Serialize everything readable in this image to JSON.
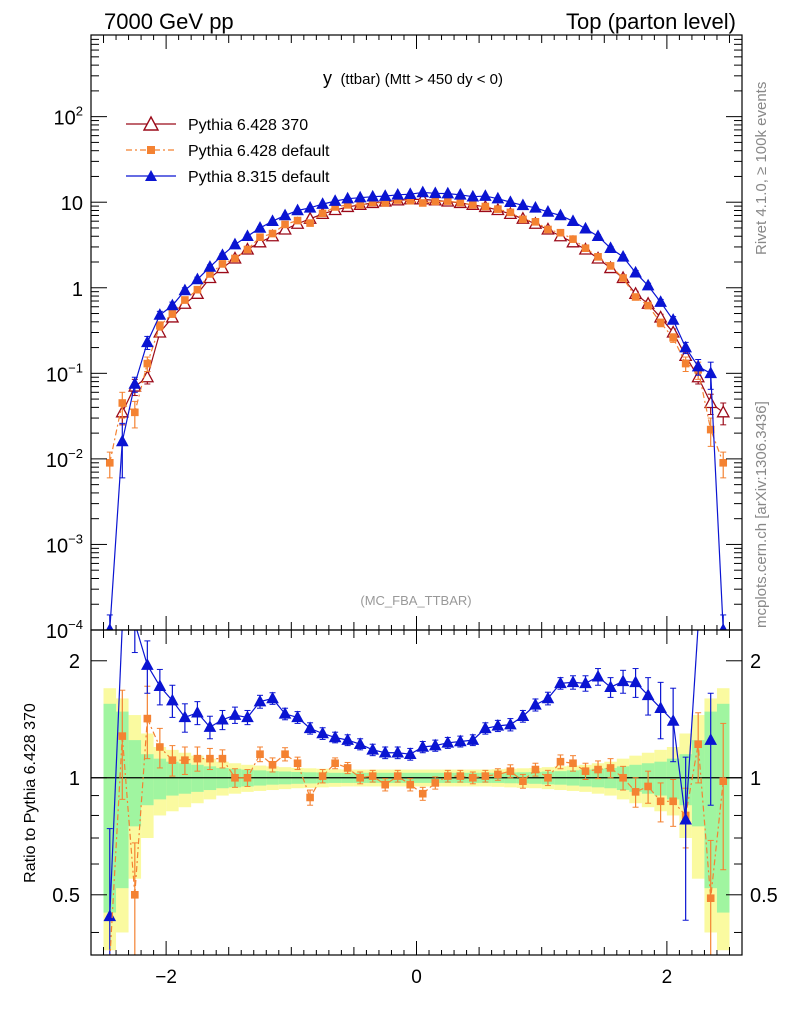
{
  "header": {
    "energy": "7000 GeV pp",
    "process": "Top (parton level)"
  },
  "side_text": {
    "rivet": "Rivet 4.1.0, ≥ 100k events",
    "mcplots": "mcplots.cern.ch [arXiv:1306.3436]"
  },
  "plot": {
    "title_main": "y",
    "title_rest": "(ttbar) (Mtt > 450 dy < 0)",
    "watermark": "(MC_FBA_TTBAR)"
  },
  "colors": {
    "p6_370": "#9b0a19",
    "p6_default": "#f48232",
    "p8_default": "#0a14d2",
    "band_inner": "#a0f5a0",
    "band_outer": "#fafaa0"
  },
  "chart_data": [
    {
      "type": "line",
      "scale": "log",
      "xlim": [
        -2.6,
        2.6
      ],
      "ylim": [
        0.0001,
        900
      ],
      "yticks": [
        {
          "value": 0.0001,
          "base": "10",
          "exp": "−4"
        },
        {
          "value": 0.001,
          "base": "10",
          "exp": "−3"
        },
        {
          "value": 0.01,
          "base": "10",
          "exp": "−2"
        },
        {
          "value": 0.1,
          "base": "10",
          "exp": "−1"
        },
        {
          "value": 1,
          "base": "1",
          "exp": ""
        },
        {
          "value": 10,
          "base": "10",
          "exp": ""
        },
        {
          "value": 100,
          "base": "10",
          "exp": "2"
        }
      ],
      "x": [
        -2.45,
        -2.35,
        -2.25,
        -2.15,
        -2.05,
        -1.95,
        -1.85,
        -1.75,
        -1.65,
        -1.55,
        -1.45,
        -1.35,
        -1.25,
        -1.15,
        -1.05,
        -0.95,
        -0.85,
        -0.75,
        -0.65,
        -0.55,
        -0.45,
        -0.35,
        -0.25,
        -0.15,
        -0.05,
        0.05,
        0.15,
        0.25,
        0.35,
        0.45,
        0.55,
        0.65,
        0.75,
        0.85,
        0.95,
        1.05,
        1.15,
        1.25,
        1.35,
        1.45,
        1.55,
        1.65,
        1.75,
        1.85,
        1.95,
        2.05,
        2.15,
        2.25,
        2.35,
        2.45
      ],
      "series": [
        {
          "name": "Pythia 6.428 370",
          "marker": "open-triangle",
          "values": [
            null,
            0.035,
            0.07,
            0.09,
            0.3,
            0.45,
            0.65,
            0.85,
            1.3,
            1.7,
            2.2,
            2.8,
            3.4,
            4.0,
            4.8,
            5.6,
            6.4,
            7.3,
            8.1,
            8.8,
            9.3,
            9.8,
            10.2,
            10.5,
            10.8,
            10.8,
            10.5,
            10.2,
            9.8,
            9.3,
            8.8,
            8.1,
            7.3,
            6.4,
            5.6,
            4.8,
            4.0,
            3.4,
            2.8,
            2.2,
            1.7,
            1.3,
            0.85,
            0.65,
            0.45,
            0.3,
            0.16,
            0.09,
            0.045,
            0.035
          ],
          "errors": [
            null,
            0.01,
            0.015,
            0.015,
            0.03,
            0.04,
            0.05,
            0.06,
            0.08,
            0.1,
            0.12,
            0.14,
            0.16,
            0.18,
            0.2,
            0.22,
            0.24,
            0.26,
            0.28,
            0.3,
            0.31,
            0.32,
            0.33,
            0.34,
            0.34,
            0.34,
            0.34,
            0.33,
            0.32,
            0.31,
            0.3,
            0.28,
            0.26,
            0.24,
            0.22,
            0.2,
            0.18,
            0.16,
            0.14,
            0.12,
            0.1,
            0.08,
            0.06,
            0.05,
            0.04,
            0.03,
            0.02,
            0.015,
            0.012,
            0.01
          ]
        },
        {
          "name": "Pythia 6.428 default",
          "marker": "filled-square",
          "values": [
            0.009,
            0.045,
            0.035,
            0.13,
            0.36,
            0.5,
            0.72,
            0.95,
            1.45,
            1.9,
            2.2,
            2.8,
            3.9,
            4.3,
            5.5,
            6.1,
            5.7,
            7.4,
            8.8,
            9.3,
            9.3,
            9.9,
            9.8,
            10.6,
            10.4,
            9.8,
            10.2,
            10.3,
            9.9,
            9.3,
            8.9,
            8.3,
            7.6,
            6.3,
            5.9,
            4.8,
            4.4,
            3.7,
            2.9,
            2.3,
            1.8,
            1.3,
            0.78,
            0.62,
            0.39,
            0.26,
            0.13,
            0.11,
            0.022,
            0.009
          ],
          "errors": [
            0.003,
            0.015,
            0.012,
            0.025,
            0.04,
            0.05,
            0.06,
            0.07,
            0.09,
            0.1,
            0.12,
            0.14,
            0.17,
            0.19,
            0.21,
            0.23,
            0.23,
            0.26,
            0.28,
            0.3,
            0.31,
            0.32,
            0.33,
            0.34,
            0.34,
            0.34,
            0.34,
            0.33,
            0.32,
            0.31,
            0.3,
            0.28,
            0.26,
            0.24,
            0.22,
            0.2,
            0.18,
            0.16,
            0.14,
            0.12,
            0.1,
            0.08,
            0.06,
            0.05,
            0.04,
            0.03,
            0.025,
            0.025,
            0.008,
            0.003
          ]
        },
        {
          "name": "Pythia 8.315 default",
          "marker": "filled-triangle",
          "values": [
            0.0001,
            0.016,
            0.075,
            0.23,
            0.48,
            0.62,
            0.93,
            1.25,
            1.75,
            2.4,
            3.2,
            4.0,
            5.0,
            6.0,
            7.0,
            8.0,
            8.6,
            9.5,
            10.3,
            11.0,
            11.3,
            11.6,
            11.8,
            12.2,
            12.4,
            13.0,
            12.7,
            12.6,
            12.2,
            11.6,
            11.8,
            11.0,
            10.0,
            9.2,
            8.6,
            7.7,
            7.0,
            6.0,
            4.9,
            4.0,
            2.9,
            2.3,
            1.5,
            1.06,
            0.68,
            0.42,
            0.2,
            0.12,
            0.1,
            0.0001
          ],
          "errors": [
            5e-05,
            0.01,
            0.015,
            0.04,
            0.05,
            0.06,
            0.07,
            0.08,
            0.1,
            0.12,
            0.14,
            0.16,
            0.18,
            0.2,
            0.22,
            0.24,
            0.26,
            0.28,
            0.3,
            0.32,
            0.33,
            0.34,
            0.35,
            0.36,
            0.36,
            0.37,
            0.36,
            0.36,
            0.35,
            0.34,
            0.34,
            0.32,
            0.3,
            0.28,
            0.26,
            0.24,
            0.22,
            0.2,
            0.18,
            0.16,
            0.14,
            0.12,
            0.09,
            0.07,
            0.05,
            0.04,
            0.03,
            0.025,
            0.035,
            5e-05
          ]
        }
      ]
    },
    {
      "type": "line",
      "scale": "log",
      "ylabel": "Ratio to Pythia 6.428 370",
      "xlim": [
        -2.6,
        2.6
      ],
      "ylim": [
        0.35,
        2.4
      ],
      "yticks": [
        0.5,
        1,
        2
      ],
      "xticks": [
        -2,
        0,
        2
      ],
      "x": [
        -2.45,
        -2.35,
        -2.25,
        -2.15,
        -2.05,
        -1.95,
        -1.85,
        -1.75,
        -1.65,
        -1.55,
        -1.45,
        -1.35,
        -1.25,
        -1.15,
        -1.05,
        -0.95,
        -0.85,
        -0.75,
        -0.65,
        -0.55,
        -0.45,
        -0.35,
        -0.25,
        -0.15,
        -0.05,
        0.05,
        0.15,
        0.25,
        0.35,
        0.45,
        0.55,
        0.65,
        0.75,
        0.85,
        0.95,
        1.05,
        1.15,
        1.25,
        1.35,
        1.45,
        1.55,
        1.65,
        1.75,
        1.85,
        1.95,
        2.05,
        2.15,
        2.25,
        2.35,
        2.45
      ],
      "band_inner": [
        0.55,
        0.48,
        0.25,
        0.15,
        0.12,
        0.1,
        0.09,
        0.08,
        0.07,
        0.06,
        0.055,
        0.05,
        0.045,
        0.04,
        0.038,
        0.035,
        0.033,
        0.032,
        0.03,
        0.03,
        0.03,
        0.03,
        0.03,
        0.03,
        0.03,
        0.03,
        0.03,
        0.03,
        0.03,
        0.03,
        0.03,
        0.03,
        0.032,
        0.033,
        0.035,
        0.038,
        0.04,
        0.045,
        0.05,
        0.055,
        0.06,
        0.07,
        0.08,
        0.09,
        0.1,
        0.12,
        0.15,
        0.25,
        0.48,
        0.55
      ],
      "band_outer": [
        0.7,
        0.6,
        0.45,
        0.3,
        0.2,
        0.18,
        0.16,
        0.14,
        0.12,
        0.1,
        0.09,
        0.08,
        0.075,
        0.07,
        0.065,
        0.06,
        0.058,
        0.055,
        0.052,
        0.05,
        0.05,
        0.05,
        0.05,
        0.05,
        0.05,
        0.05,
        0.05,
        0.05,
        0.05,
        0.05,
        0.05,
        0.052,
        0.055,
        0.058,
        0.06,
        0.065,
        0.07,
        0.075,
        0.08,
        0.09,
        0.1,
        0.12,
        0.14,
        0.16,
        0.18,
        0.2,
        0.3,
        0.45,
        0.6,
        0.7
      ],
      "series": [
        {
          "name": "Pythia 6.428 default",
          "values": [
            null,
            1.28,
            0.5,
            1.42,
            1.2,
            1.11,
            1.11,
            1.12,
            1.12,
            1.12,
            1.0,
            1.0,
            1.15,
            1.08,
            1.15,
            1.09,
            0.89,
            1.01,
            1.09,
            1.06,
            1.0,
            1.01,
            0.96,
            1.01,
            0.96,
            0.91,
            0.97,
            1.01,
            1.01,
            1.0,
            1.01,
            1.02,
            1.04,
            0.98,
            1.05,
            1.0,
            1.1,
            1.09,
            1.04,
            1.05,
            1.06,
            1.0,
            0.92,
            0.95,
            0.87,
            0.87,
            0.8,
            1.22,
            0.49,
            0.98
          ],
          "errors": [
            null,
            0.4,
            0.18,
            0.3,
            0.14,
            0.1,
            0.09,
            0.08,
            0.07,
            0.06,
            0.055,
            0.05,
            0.05,
            0.045,
            0.045,
            0.04,
            0.04,
            0.04,
            0.035,
            0.035,
            0.035,
            0.035,
            0.035,
            0.035,
            0.035,
            0.035,
            0.035,
            0.035,
            0.035,
            0.035,
            0.035,
            0.035,
            0.04,
            0.04,
            0.04,
            0.045,
            0.045,
            0.05,
            0.05,
            0.055,
            0.06,
            0.07,
            0.08,
            0.09,
            0.1,
            0.12,
            0.14,
            0.25,
            0.2,
            0.4
          ]
        },
        {
          "name": "Pythia 8.315 default",
          "values": [
            0.44,
            null,
            2.5,
            1.95,
            1.72,
            1.58,
            1.43,
            1.47,
            1.35,
            1.41,
            1.45,
            1.43,
            1.57,
            1.6,
            1.46,
            1.43,
            1.34,
            1.3,
            1.27,
            1.25,
            1.22,
            1.18,
            1.16,
            1.16,
            1.15,
            1.2,
            1.21,
            1.23,
            1.24,
            1.25,
            1.34,
            1.36,
            1.37,
            1.44,
            1.54,
            1.6,
            1.75,
            1.76,
            1.75,
            1.82,
            1.71,
            1.77,
            1.76,
            1.63,
            1.51,
            1.4,
            0.78,
            null,
            1.25,
            null
          ],
          "errors": [
            0.3,
            null,
            0.4,
            0.3,
            0.18,
            0.15,
            0.12,
            0.1,
            0.09,
            0.08,
            0.07,
            0.06,
            0.06,
            0.055,
            0.05,
            0.05,
            0.045,
            0.045,
            0.04,
            0.04,
            0.04,
            0.04,
            0.04,
            0.04,
            0.04,
            0.04,
            0.04,
            0.04,
            0.04,
            0.04,
            0.045,
            0.045,
            0.05,
            0.05,
            0.055,
            0.06,
            0.06,
            0.07,
            0.08,
            0.09,
            0.1,
            0.12,
            0.15,
            0.18,
            0.25,
            0.3,
            0.35,
            null,
            0.4,
            null
          ]
        }
      ]
    }
  ]
}
